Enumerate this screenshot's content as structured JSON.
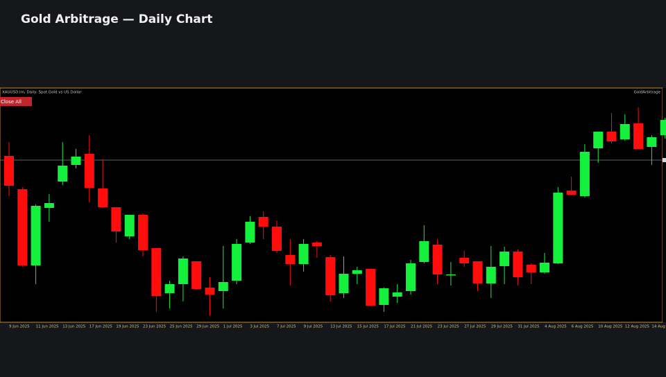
{
  "header": {
    "title": "Gold Arbitrage — Daily Chart"
  },
  "panel": {
    "symbol_label": "XAUUSD.lm, Daily:  Spot Gold vs US Dollar",
    "button": "Close All",
    "ea_label": "GoldArbitrage"
  },
  "chart_data": {
    "type": "candlestick",
    "categories": [
      "9 Jun 2025",
      null,
      "11 Jun 2025",
      null,
      "13 Jun 2025",
      null,
      "17 Jun 2025",
      null,
      "19 Jun 2025",
      null,
      "23 Jun 2025",
      null,
      "25 Jun 2025",
      null,
      "29 Jun 2025",
      null,
      "1 Jul 2025",
      null,
      "3 Jul 2025",
      null,
      "7 Jul 2025",
      null,
      "9 Jul 2025",
      null,
      "13 Jul 2025",
      null,
      "15 Jul 2025",
      null,
      "17 Jul 2025",
      null,
      "21 Jul 2025",
      null,
      "23 Jul 2025",
      null,
      "27 Jul 2025",
      null,
      "29 Jul 2025",
      null,
      "31 Jul 2025",
      null,
      "4 Aug 2025",
      null,
      "6 Aug 2025",
      null,
      "10 Aug 2025",
      null,
      "12 Aug 2025",
      null,
      "14 Aug 2025",
      null
    ],
    "open": [
      240,
      192,
      82,
      165,
      203,
      227,
      243,
      193,
      166,
      124,
      155,
      107,
      42,
      55,
      88,
      50,
      45,
      60,
      115,
      152,
      138,
      97,
      84,
      115,
      94,
      42,
      70,
      77,
      25,
      37,
      45,
      87,
      112,
      68,
      93,
      88,
      56,
      81,
      102,
      83,
      72,
      85,
      190,
      182,
      251,
      275,
      264,
      287,
      253,
      270
    ],
    "high": [
      260,
      195,
      170,
      185,
      260,
      250,
      270,
      235,
      166,
      155,
      157,
      107,
      60,
      95,
      88,
      65,
      110,
      120,
      153,
      160,
      147,
      120,
      120,
      117,
      97,
      95,
      80,
      77,
      50,
      55,
      90,
      140,
      120,
      87,
      103,
      88,
      110,
      109,
      105,
      85,
      100,
      195,
      210,
      257,
      275,
      302,
      300,
      310,
      270,
      295
    ],
    "low": [
      182,
      80,
      55,
      145,
      198,
      222,
      173,
      165,
      115,
      120,
      95,
      15,
      20,
      30,
      47,
      10,
      20,
      55,
      113,
      120,
      100,
      53,
      73,
      93,
      30,
      35,
      55,
      24,
      15,
      28,
      40,
      85,
      55,
      53,
      80,
      45,
      35,
      55,
      53,
      55,
      70,
      84,
      183,
      180,
      230,
      258,
      262,
      250,
      227,
      265
    ],
    "close": [
      197,
      82,
      168,
      172,
      226,
      239,
      194,
      166,
      131,
      155,
      104,
      38,
      55,
      92,
      48,
      40,
      58,
      113,
      145,
      138,
      103,
      84,
      113,
      110,
      39,
      70,
      75,
      24,
      49,
      43,
      85,
      117,
      69,
      69,
      85,
      56,
      80,
      102,
      65,
      72,
      86,
      187,
      184,
      246,
      275,
      261,
      286,
      250,
      267,
      292
    ],
    "up_color": "#14f03c",
    "down_color": "#ff0d0d",
    "ylim": [
      0,
      337
    ],
    "price_line": 234,
    "price_line_color": "#7d8799"
  }
}
